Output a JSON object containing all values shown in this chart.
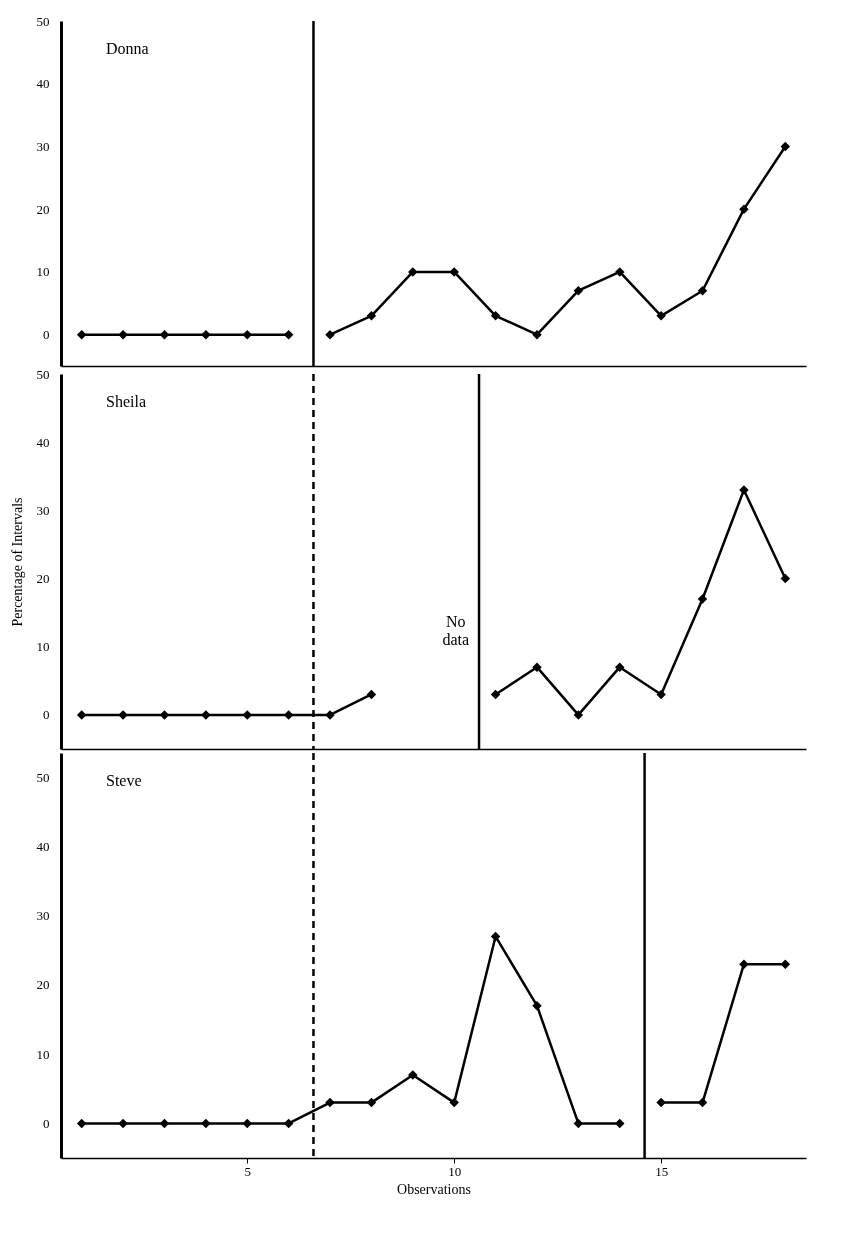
{
  "chart_data": [
    {
      "type": "line",
      "xlim": [
        0.5,
        18.5
      ],
      "ylim": [
        -5,
        50
      ],
      "yticks": [
        0,
        10,
        20,
        30,
        40,
        50
      ],
      "xticks": [
        5,
        10,
        15
      ],
      "tick_labels": "y",
      "grid": false,
      "legend": false,
      "marker": "diamond",
      "line_style": "solid",
      "annotations": [
        "Donna"
      ],
      "series": [
        {
          "color": "#000000",
          "x": [
            1,
            2,
            3,
            4,
            5,
            6
          ],
          "values": [
            0,
            0,
            0,
            0,
            0,
            0
          ]
        },
        {
          "color": "#000000",
          "x": [
            7,
            8,
            9,
            10,
            11,
            12,
            13,
            14,
            15,
            16,
            17,
            18
          ],
          "values": [
            0,
            3,
            10,
            10,
            3,
            0,
            7,
            10,
            3,
            7,
            20,
            30
          ]
        }
      ],
      "ref_lines": [
        {
          "axis": "x",
          "value": 6.6,
          "line_style": "solid",
          "color": "#000000"
        }
      ]
    },
    {
      "type": "line",
      "ylabel": "Percentage of Intervals",
      "xlim": [
        0.5,
        18.5
      ],
      "ylim": [
        -5,
        50
      ],
      "yticks": [
        0,
        10,
        20,
        30,
        40,
        50
      ],
      "xticks": [
        5,
        10,
        15
      ],
      "tick_labels": "y",
      "grid": false,
      "legend": false,
      "marker": "diamond",
      "line_style": "solid",
      "annotations": [
        "Sheila",
        "No data"
      ],
      "series": [
        {
          "color": "#000000",
          "x": [
            1,
            2,
            3,
            4,
            5,
            6,
            7,
            8
          ],
          "values": [
            0,
            0,
            0,
            0,
            0,
            0,
            0,
            3
          ]
        },
        {
          "color": "#000000",
          "x": [
            11,
            12,
            13,
            14,
            15,
            16,
            17,
            18
          ],
          "values": [
            3,
            7,
            0,
            7,
            3,
            17,
            33,
            20
          ]
        }
      ],
      "ref_lines": [
        {
          "axis": "x",
          "value": 6.6,
          "line_style": "dashed",
          "color": "#000000"
        },
        {
          "axis": "x",
          "value": 10.6,
          "line_style": "solid",
          "color": "#000000"
        }
      ]
    },
    {
      "type": "line",
      "xlabel": "Observations",
      "xlim": [
        0.5,
        18.5
      ],
      "ylim": [
        -5,
        53.5
      ],
      "yticks": [
        0,
        10,
        20,
        30,
        40,
        50
      ],
      "xticks": [
        5,
        10,
        15
      ],
      "grid": false,
      "legend": false,
      "marker": "diamond",
      "line_style": "solid",
      "annotations": [
        "Steve"
      ],
      "series": [
        {
          "color": "#000000",
          "x": [
            1,
            2,
            3,
            4,
            5,
            6,
            7,
            8,
            9,
            10,
            11,
            12,
            13,
            14
          ],
          "values": [
            0,
            0,
            0,
            0,
            0,
            0,
            3,
            3,
            7,
            3,
            27,
            17,
            0,
            0
          ]
        },
        {
          "color": "#000000",
          "x": [
            15,
            16,
            17,
            18
          ],
          "values": [
            3,
            3,
            23,
            23
          ]
        }
      ],
      "ref_lines": [
        {
          "axis": "x",
          "value": 6.6,
          "line_style": "dashed",
          "color": "#000000"
        },
        {
          "axis": "x",
          "value": 14.6,
          "line_style": "solid",
          "color": "#000000"
        }
      ]
    }
  ]
}
